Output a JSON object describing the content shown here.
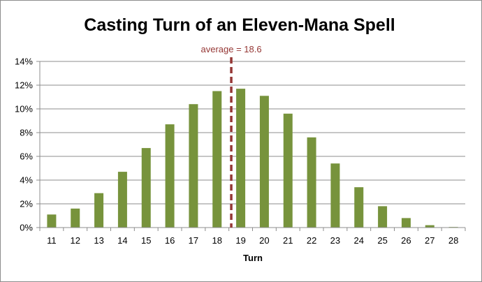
{
  "chart_data": {
    "type": "bar",
    "title": "Casting Turn of an Eleven-Mana Spell",
    "xlabel": "Turn",
    "ylabel": "",
    "categories": [
      "11",
      "12",
      "13",
      "14",
      "15",
      "16",
      "17",
      "18",
      "19",
      "20",
      "21",
      "22",
      "23",
      "24",
      "25",
      "26",
      "27",
      "28"
    ],
    "values": [
      1.1,
      1.6,
      2.9,
      4.7,
      6.7,
      8.7,
      10.4,
      11.5,
      11.7,
      11.1,
      9.6,
      7.6,
      5.4,
      3.4,
      1.8,
      0.8,
      0.2,
      0.05
    ],
    "ylim": [
      0,
      14
    ],
    "yticks": [
      0,
      2,
      4,
      6,
      8,
      10,
      12,
      14
    ],
    "ytick_suffix": "%",
    "grid": true,
    "bar_color": "#77933c",
    "annotation": {
      "text": "average = 18.6",
      "x": 18.6,
      "color": "#953735"
    }
  }
}
